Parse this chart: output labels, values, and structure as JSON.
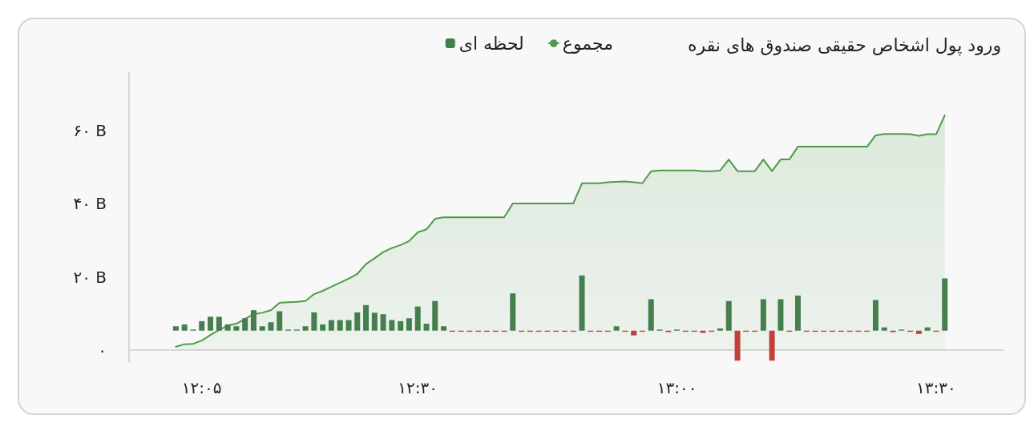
{
  "chart_data": {
    "type": "area",
    "title": "ورود پول اشخاص حقیقی صندوق های نقره",
    "legend": "top",
    "x": [
      12.0333,
      12.05,
      12.0667,
      12.0833,
      12.1,
      12.1167,
      12.1333,
      12.15,
      12.1667,
      12.1833,
      12.2,
      12.2167,
      12.2333,
      12.25,
      12.2667,
      12.2833,
      12.3,
      12.3167,
      12.3333,
      12.35,
      12.3667,
      12.3833,
      12.4,
      12.4167,
      12.4333,
      12.45,
      12.4667,
      12.4833,
      12.5,
      12.5167,
      12.5333,
      12.55,
      12.5667,
      12.5833,
      12.6,
      12.6167,
      12.6333,
      12.65,
      12.6667,
      12.6833,
      12.7,
      12.7167,
      12.7333,
      12.75,
      12.7667,
      12.7833,
      12.8,
      12.8167,
      12.8333,
      12.85,
      12.8667,
      12.8833,
      12.9,
      12.9167,
      12.9333,
      12.95,
      12.9667,
      12.9833,
      13,
      13.0167,
      13.0333,
      13.05,
      13.0667,
      13.0833,
      13.1,
      13.1167,
      13.1333,
      13.15,
      13.1667,
      13.1833,
      13.2,
      13.2167,
      13.2333,
      13.25,
      13.2667,
      13.2833,
      13.3,
      13.3167,
      13.3333,
      13.35,
      13.3667,
      13.3833,
      13.4,
      13.4167,
      13.4333,
      13.45,
      13.4667,
      13.4833,
      13.5,
      13.5167
    ],
    "series": [
      {
        "name": "مجموع",
        "color": "#4e9a4a",
        "values": [
          0.9,
          1.6,
          1.7,
          2.6,
          4.1,
          5.5,
          6.7,
          7.2,
          8.5,
          9.8,
          10.2,
          10.9,
          12.9,
          13.1,
          13.2,
          13.4,
          15.3,
          16.2,
          17.3,
          18.4,
          19.5,
          20.8,
          23.5,
          25.1,
          26.8,
          27.9,
          28.7,
          29.8,
          32.2,
          33.0,
          35.9,
          36.3,
          36.3,
          36.3,
          36.3,
          36.3,
          36.3,
          36.3,
          36.3,
          40.1,
          40.1,
          40.1,
          40.1,
          40.1,
          40.1,
          40.1,
          40.1,
          45.6,
          45.6,
          45.6,
          45.9,
          46.0,
          46.1,
          45.9,
          45.6,
          48.9,
          49.1,
          49.1,
          49.1,
          49.1,
          49.1,
          48.9,
          48.9,
          49.1,
          52.1,
          48.9,
          48.9,
          48.9,
          52.1,
          48.9,
          52.1,
          52.1,
          55.6,
          55.6,
          55.6,
          55.6,
          55.6,
          55.6,
          55.6,
          55.6,
          55.6,
          58.7,
          59.1,
          59.1,
          59.1,
          59.0,
          58.6,
          59.0,
          59.0,
          64.2
        ]
      },
      {
        "name": "لحظه ای",
        "type": "bar",
        "color": "#467f4e",
        "base": [
          5.3,
          5.3,
          5.3,
          5.3,
          5.3,
          5.3,
          5.3,
          5.3,
          5.3,
          5.3,
          5.3,
          5.3,
          5.3,
          5.3,
          5.3,
          5.3,
          5.3,
          5.3,
          5.3,
          5.3,
          5.3,
          5.3,
          5.3,
          5.3,
          5.3,
          5.3,
          5.3,
          5.3,
          5.3,
          5.3,
          5.3,
          5.3,
          5.3,
          5.3,
          5.3,
          5.3,
          5.3,
          5.3,
          5.3,
          5.3,
          5.3,
          5.3,
          5.3,
          5.3,
          5.3,
          5.3,
          5.3,
          5.3,
          5.3,
          5.3,
          5.3,
          5.3,
          5.3,
          5.3,
          5.3,
          5.3,
          5.3,
          5.3,
          5.3,
          5.3,
          5.3,
          5.3,
          5.3,
          5.3,
          5.3,
          5.3,
          5.3,
          5.3,
          5.3,
          5.3,
          5.3,
          5.3,
          5.3,
          5.3,
          5.3,
          5.3,
          5.3,
          5.3,
          5.3,
          5.3,
          5.3,
          5.3,
          5.3,
          5.3,
          5.3,
          5.3,
          5.3,
          5.3,
          5.3,
          5.3
        ],
        "values": [
          1.2,
          1.7,
          0.3,
          2.6,
          3.8,
          3.8,
          1.7,
          1.2,
          3.4,
          5.6,
          1.2,
          2.3,
          5.3,
          0.3,
          0.3,
          1.2,
          5.0,
          1.7,
          2.9,
          2.9,
          2.9,
          5.0,
          7.0,
          4.9,
          4.5,
          2.9,
          2.6,
          3.4,
          6.6,
          1.9,
          8.1,
          1.2,
          -0.3,
          -0.3,
          -0.3,
          -0.3,
          -0.3,
          -0.3,
          -0.3,
          10.2,
          -0.3,
          -0.3,
          -0.3,
          -0.3,
          -0.3,
          -0.3,
          -0.3,
          15.1,
          -0.3,
          -0.3,
          -0.3,
          1.2,
          -0.3,
          -1.3,
          -0.3,
          8.6,
          0.3,
          -0.4,
          0.3,
          -0.3,
          -0.3,
          -0.6,
          -0.3,
          0.6,
          8.1,
          -8.2,
          -0.3,
          -0.3,
          8.6,
          -8.2,
          8.6,
          -0.3,
          9.6,
          -0.3,
          -0.3,
          -0.3,
          -0.3,
          -0.3,
          -0.3,
          -0.3,
          -0.3,
          8.4,
          0.9,
          -0.4,
          0.3,
          -0.3,
          -0.9,
          0.9,
          -0.3,
          14.3
        ],
        "colors": [
          "#467f4e",
          "#467f4e",
          "#467f4e",
          "#467f4e",
          "#467f4e",
          "#467f4e",
          "#467f4e",
          "#467f4e",
          "#467f4e",
          "#467f4e",
          "#467f4e",
          "#467f4e",
          "#467f4e",
          "#467f4e",
          "#467f4e",
          "#467f4e",
          "#467f4e",
          "#467f4e",
          "#467f4e",
          "#467f4e",
          "#467f4e",
          "#467f4e",
          "#467f4e",
          "#467f4e",
          "#467f4e",
          "#467f4e",
          "#467f4e",
          "#467f4e",
          "#467f4e",
          "#467f4e",
          "#467f4e",
          "#467f4e",
          "#c1403a",
          "#c1403a",
          "#c1403a",
          "#c1403a",
          "#c1403a",
          "#c1403a",
          "#c1403a",
          "#467f4e",
          "#c1403a",
          "#c1403a",
          "#c1403a",
          "#c1403a",
          "#c1403a",
          "#c1403a",
          "#c1403a",
          "#467f4e",
          "#c1403a",
          "#c1403a",
          "#c1403a",
          "#467f4e",
          "#c1403a",
          "#c1403a",
          "#c1403a",
          "#467f4e",
          "#467f4e",
          "#c1403a",
          "#467f4e",
          "#c1403a",
          "#c1403a",
          "#c1403a",
          "#c1403a",
          "#467f4e",
          "#467f4e",
          "#c1403a",
          "#c1403a",
          "#c1403a",
          "#467f4e",
          "#c1403a",
          "#467f4e",
          "#c1403a",
          "#467f4e",
          "#c1403a",
          "#c1403a",
          "#c1403a",
          "#c1403a",
          "#c1403a",
          "#c1403a",
          "#c1403a",
          "#c1403a",
          "#467f4e",
          "#467f4e",
          "#c1403a",
          "#467f4e",
          "#c1403a",
          "#c1403a",
          "#467f4e",
          "#c1403a",
          "#467f4e"
        ]
      }
    ],
    "xlim": [
      11.943,
      13.63
    ],
    "xticks": [
      {
        "value": 12.0833,
        "label": "۱۲:۰۵"
      },
      {
        "value": 12.5,
        "label": "۱۲:۳۰"
      },
      {
        "value": 13,
        "label": "۱۳:۰۰"
      },
      {
        "value": 13.5,
        "label": "۱۳:۳۰"
      }
    ],
    "ylim": [
      -3.3,
      76
    ],
    "yticks": [
      {
        "value": 0,
        "label": "۰"
      },
      {
        "value": 20,
        "label": "۲۰ B"
      },
      {
        "value": 40,
        "label": "۴۰ B"
      },
      {
        "value": 60,
        "label": "۶۰ B"
      }
    ],
    "grid": false,
    "marker": "none",
    "line_style": "solid"
  }
}
